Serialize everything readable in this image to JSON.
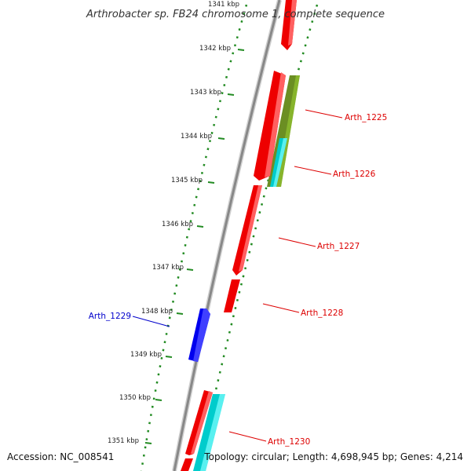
{
  "title": "Arthrobacter sp. FB24 chromosome 1, complete sequence",
  "accession_text": "Accession: NC_008541",
  "summary_text": "Topology: circular; Length: 4,698,945 bp; Genes: 4,214",
  "tick_labels": [
    "1341 kbp",
    "1342 kbp",
    "1343 kbp",
    "1344 kbp",
    "1345 kbp",
    "1346 kbp",
    "1347 kbp",
    "1348 kbp",
    "1349 kbp",
    "1350 kbp",
    "1351 kbp"
  ],
  "gene_labels": [
    {
      "name": "Arth_1225",
      "color": "#dd0000"
    },
    {
      "name": "Arth_1226",
      "color": "#dd0000"
    },
    {
      "name": "Arth_1227",
      "color": "#dd0000"
    },
    {
      "name": "Arth_1228",
      "color": "#dd0000"
    },
    {
      "name": "Arth_1229",
      "color": "#0000cc"
    },
    {
      "name": "Arth_1230",
      "color": "#dd0000"
    }
  ],
  "colors": {
    "cds_forward": "#ee0000",
    "cds_reverse": "#0000ee",
    "feature_olive": "#6b8e23",
    "feature_cyan": "#00cccc",
    "backbone": "#888888",
    "dots": "#228b22",
    "ticks": "#228b22"
  }
}
